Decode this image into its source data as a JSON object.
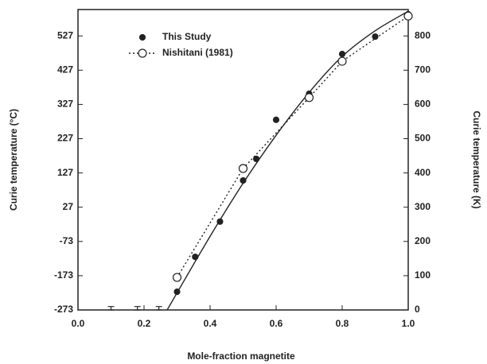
{
  "chart_data": {
    "type": "scatter",
    "x_label": "Mole-fraction magnetite",
    "y_label": "Curie temperature (°C)",
    "y2_label": "Curie temperature (K)",
    "xlim": [
      0,
      1
    ],
    "xticks": [
      {
        "value": 0,
        "label": "0.0"
      },
      0.2,
      0.4,
      0.6,
      0.8,
      {
        "value": 1,
        "label": "1.0"
      }
    ],
    "ylim": [
      -273,
      604
    ],
    "yticks": [
      -273,
      -173,
      -73,
      27,
      127,
      227,
      327,
      427,
      527
    ],
    "y2lim": [
      0,
      877
    ],
    "y2ticks": [
      0,
      100,
      200,
      300,
      400,
      500,
      600,
      700,
      800
    ],
    "legend": "top-left",
    "series": [
      {
        "name": "This Study",
        "color": "#222222",
        "marker": "filled",
        "line": "none",
        "axis": "y2",
        "x": [
          0.3,
          0.355,
          0.43,
          0.5,
          0.54,
          0.6,
          0.7,
          0.8,
          0.9,
          1.0
        ],
        "values": [
          53,
          155,
          258,
          378,
          441,
          555,
          631,
          747,
          798,
          863
        ]
      },
      {
        "name": "Nishitani (1981)",
        "color": "#222222",
        "marker": "open",
        "line": "dotted",
        "axis": "y2",
        "x": [
          0.3,
          0.5,
          0.7,
          0.8,
          1.0
        ],
        "values": [
          95,
          413,
          620,
          726,
          858
        ]
      }
    ],
    "fit_curve": {
      "color": "#222222",
      "axis": "y2",
      "x": [
        0.27,
        0.3,
        0.4,
        0.5,
        0.6,
        0.7,
        0.8,
        0.9,
        1.0
      ],
      "values": [
        0,
        50,
        215,
        370,
        510,
        635,
        740,
        815,
        872
      ]
    },
    "error_bars": {
      "color": "#222222",
      "axis": "y2",
      "x": [
        0.1,
        0.18,
        0.245
      ],
      "values": [
        5,
        5,
        5
      ],
      "errors": [
        5,
        5,
        5
      ]
    }
  }
}
